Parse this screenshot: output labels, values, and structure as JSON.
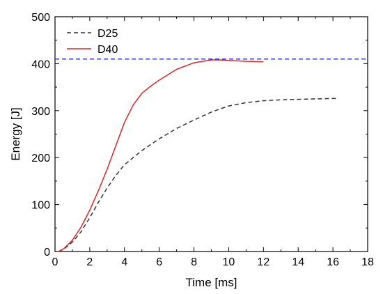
{
  "chart_data": {
    "type": "line",
    "title": "",
    "xlabel": "Time [ms]",
    "ylabel": "Energy [J]",
    "xlim": [
      0,
      18
    ],
    "ylim": [
      0,
      500
    ],
    "xticks": [
      0,
      2,
      4,
      6,
      8,
      10,
      12,
      14,
      16,
      18
    ],
    "yticks": [
      0,
      100,
      200,
      300,
      400,
      500
    ],
    "grid": false,
    "legend_position": "top-left",
    "series": [
      {
        "name": "D25",
        "color": "#333333",
        "style": "dashed",
        "x": [
          0.2,
          0.5,
          1.0,
          1.5,
          2.0,
          2.5,
          3.0,
          3.5,
          4.0,
          5.0,
          6.0,
          7.0,
          8.0,
          9.0,
          10.0,
          11.0,
          12.0,
          13.0,
          14.0,
          15.0,
          16.2
        ],
        "y": [
          0,
          5,
          20,
          42,
          72,
          105,
          135,
          162,
          185,
          215,
          240,
          262,
          280,
          297,
          310,
          317,
          321,
          323,
          324,
          325,
          326
        ]
      },
      {
        "name": "D40",
        "color": "#d62728",
        "style": "solid",
        "x": [
          0.2,
          0.5,
          1.0,
          1.5,
          2.0,
          2.5,
          3.0,
          3.5,
          4.0,
          4.5,
          5.0,
          5.5,
          6.0,
          7.0,
          8.0,
          9.0,
          9.5,
          10.0,
          11.0,
          12.0
        ],
        "y": [
          0,
          6,
          24,
          52,
          88,
          130,
          175,
          225,
          275,
          312,
          337,
          352,
          365,
          388,
          402,
          408,
          408,
          407,
          405,
          404
        ]
      },
      {
        "name": "",
        "color": "#2f35e0",
        "style": "dashed",
        "x": [
          0,
          18
        ],
        "y": [
          410,
          410
        ]
      }
    ]
  }
}
